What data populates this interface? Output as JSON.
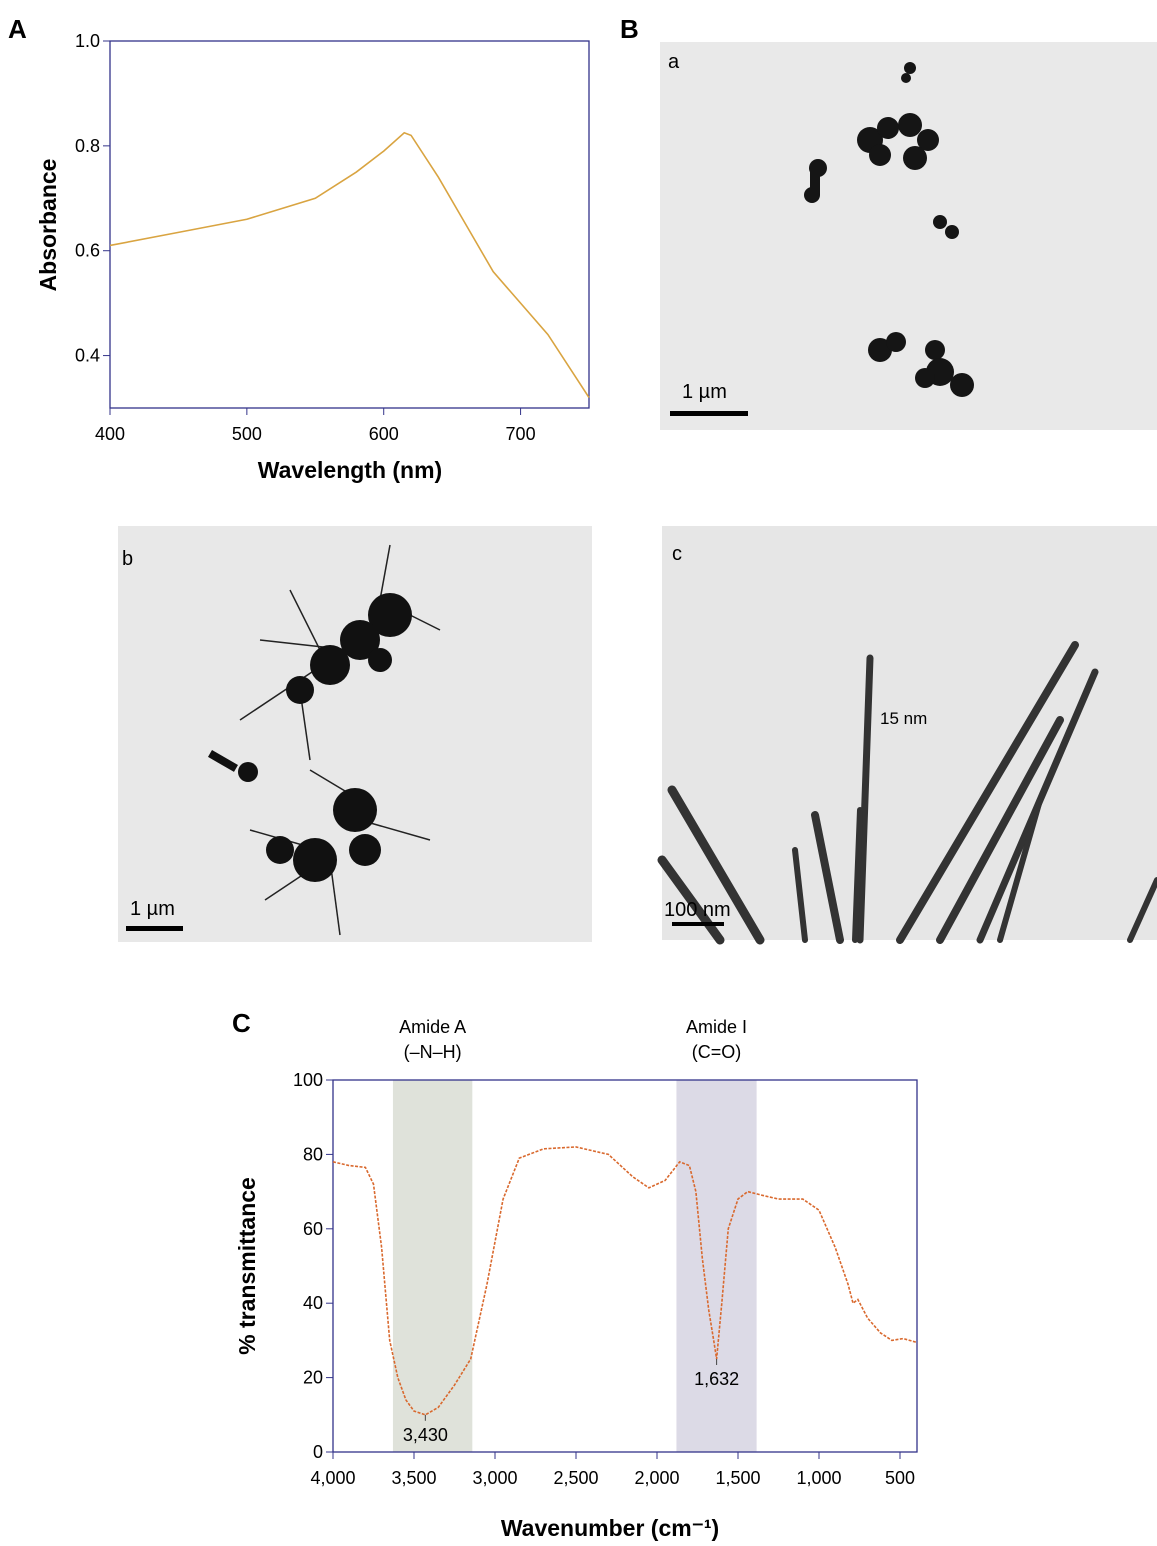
{
  "panel_labels": [
    "A",
    "B",
    "C"
  ],
  "images": [
    {
      "label": "a",
      "scale_bar": "1 µm"
    },
    {
      "label": "b",
      "scale_bar": "1 µm"
    },
    {
      "label": "c",
      "scale_bar": "100 nm",
      "annotation": "15 nm"
    }
  ],
  "chart_data": [
    {
      "type": "line",
      "x_label": "Wavelength (nm)",
      "y_label": "Absorbance",
      "x": [
        400,
        450,
        500,
        550,
        580,
        600,
        615,
        620,
        640,
        660,
        680,
        700,
        720,
        750
      ],
      "values": [
        0.61,
        0.635,
        0.66,
        0.7,
        0.75,
        0.79,
        0.825,
        0.82,
        0.74,
        0.65,
        0.56,
        0.5,
        0.44,
        0.32
      ],
      "color": "#d9a441",
      "xlim": [
        400,
        750
      ],
      "ylim": [
        0.3,
        1.0
      ],
      "xticks": [
        400,
        500,
        600,
        700
      ],
      "yticks": [
        0.4,
        0.6,
        0.8,
        {
          "value": 1.0,
          "label": "1.0"
        }
      ]
    },
    {
      "type": "line",
      "x_label": "Wavenumber (cm⁻¹)",
      "y_label": "% transmittance",
      "x": [
        4000,
        3900,
        3800,
        3750,
        3700,
        3650,
        3600,
        3550,
        3500,
        3430,
        3350,
        3250,
        3150,
        3050,
        2950,
        2850,
        2700,
        2500,
        2300,
        2150,
        2050,
        1950,
        1860,
        1800,
        1760,
        1720,
        1680,
        1650,
        1632,
        1600,
        1560,
        1500,
        1440,
        1350,
        1250,
        1100,
        1000,
        900,
        820,
        790,
        760,
        700,
        620,
        550,
        480,
        400
      ],
      "values": [
        78,
        77,
        76.5,
        72,
        55,
        30,
        20,
        14,
        11,
        10,
        12,
        18,
        25,
        45,
        68,
        79,
        81.5,
        82,
        80,
        74,
        71,
        73,
        78,
        77,
        70,
        52,
        38,
        30,
        25,
        40,
        60,
        68,
        70,
        69,
        68,
        68,
        65,
        55,
        45,
        40,
        41,
        36,
        32,
        30,
        30.5,
        29.5
      ],
      "color": "#d9692e",
      "xlim": [
        4000,
        395
      ],
      "ylim": [
        0,
        100
      ],
      "xticks": [
        {
          "value": 4000,
          "label": "4,000"
        },
        {
          "value": 3500,
          "label": "3,500"
        },
        {
          "value": 3000,
          "label": "3,000"
        },
        {
          "value": 2500,
          "label": "2,500"
        },
        {
          "value": 2000,
          "label": "2,000"
        },
        {
          "value": 1500,
          "label": "1,500"
        },
        {
          "value": 1000,
          "label": "1,000"
        },
        500
      ],
      "yticks": [
        0,
        20,
        40,
        60,
        80,
        100
      ],
      "bands": [
        {
          "label": "Amide A",
          "sublabel": "(–N–H)",
          "range": [
            3630,
            3140
          ],
          "color": "#dfe2da"
        },
        {
          "label": "Amide I",
          "sublabel": "(C=O)",
          "range": [
            1880,
            1385
          ],
          "color": "#dcdae6"
        }
      ],
      "peaks": [
        {
          "x": 3430,
          "y": 10,
          "label": "3,430"
        },
        {
          "x": 1632,
          "y": 25,
          "label": "1,632"
        }
      ]
    }
  ]
}
